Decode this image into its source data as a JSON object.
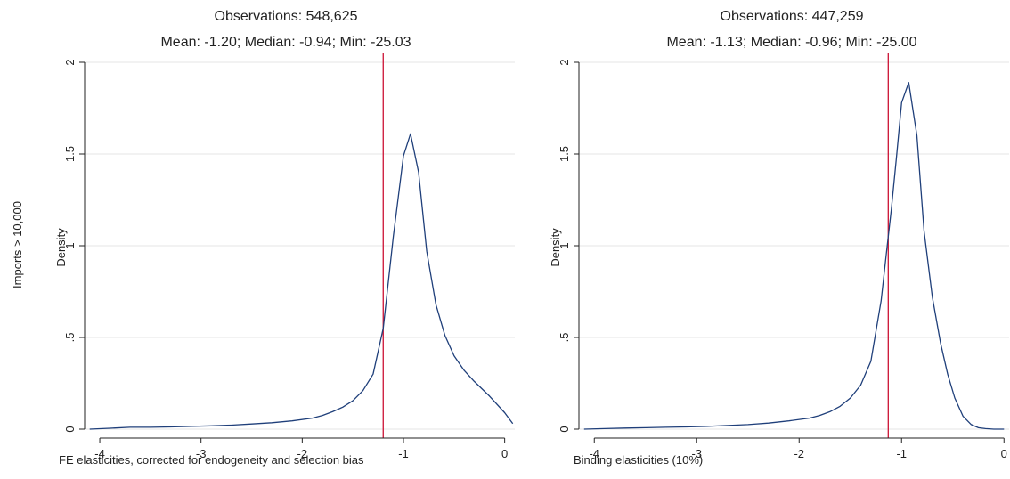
{
  "figure": {
    "row_label": "Imports > 10,000"
  },
  "panels": [
    {
      "title_line1": "Observations: 548,625",
      "title_line2": "Mean: -1.20; Median: -0.94; Min: -25.03",
      "xlabel": "FE elasticities, corrected for endogeneity and selection bias",
      "ylabel": "Density"
    },
    {
      "title_line1": "Observations: 447,259",
      "title_line2": "Mean: -1.13; Median: -0.96; Min: -25.00",
      "xlabel": "Binding elasticities (10%)",
      "ylabel": "Density"
    }
  ],
  "chart_data": [
    {
      "type": "line",
      "title": "Observations: 548,625 / Mean: -1.20; Median: -0.94; Min: -25.03",
      "xlabel": "FE elasticities, corrected for endogeneity and selection bias",
      "ylabel": "Density",
      "xlim": [
        -4.15,
        0.1
      ],
      "ylim": [
        0,
        2
      ],
      "x_ticks": [
        -4,
        -3,
        -2,
        -1,
        0
      ],
      "x_tick_labels": [
        "-4",
        "-3",
        "-2",
        "-1",
        "0"
      ],
      "y_ticks": [
        0,
        0.5,
        1,
        1.5,
        2
      ],
      "y_tick_labels": [
        "0",
        ".5",
        "1",
        "1.5",
        "2"
      ],
      "grid": true,
      "line_color": "#1f3f7a",
      "reference_line_color": "#cc1133",
      "reference_line_x": -1.2,
      "series": [
        {
          "x": [
            -4.1,
            -3.9,
            -3.7,
            -3.5,
            -3.3,
            -3.1,
            -2.9,
            -2.7,
            -2.5,
            -2.3,
            -2.1,
            -1.9,
            -1.8,
            -1.7,
            -1.6,
            -1.5,
            -1.4,
            -1.3,
            -1.2,
            -1.1,
            -1.0,
            -0.93,
            -0.85,
            -0.77,
            -0.68,
            -0.59,
            -0.5,
            -0.4,
            -0.3,
            -0.15,
            0.0,
            0.08
          ],
          "y": [
            0.0,
            0.005,
            0.01,
            0.01,
            0.012,
            0.015,
            0.018,
            0.022,
            0.028,
            0.035,
            0.045,
            0.06,
            0.075,
            0.095,
            0.12,
            0.155,
            0.21,
            0.3,
            0.55,
            1.05,
            1.49,
            1.61,
            1.4,
            0.97,
            0.68,
            0.51,
            0.4,
            0.32,
            0.26,
            0.18,
            0.09,
            0.03
          ]
        }
      ]
    },
    {
      "type": "line",
      "title": "Observations: 447,259 / Mean: -1.13; Median: -0.96; Min: -25.00",
      "xlabel": "Binding elasticities (10%)",
      "ylabel": "Density",
      "xlim": [
        -4.15,
        0.05
      ],
      "ylim": [
        0,
        2
      ],
      "x_ticks": [
        -4,
        -3,
        -2,
        -1,
        0
      ],
      "x_tick_labels": [
        "-4",
        "-3",
        "-2",
        "-1",
        "0"
      ],
      "y_ticks": [
        0,
        0.5,
        1,
        1.5,
        2
      ],
      "y_tick_labels": [
        "0",
        ".5",
        "1",
        "1.5",
        "2"
      ],
      "grid": true,
      "line_color": "#1f3f7a",
      "reference_line_color": "#cc1133",
      "reference_line_x": -1.13,
      "series": [
        {
          "x": [
            -4.1,
            -3.9,
            -3.7,
            -3.5,
            -3.3,
            -3.1,
            -2.9,
            -2.7,
            -2.5,
            -2.3,
            -2.1,
            -1.9,
            -1.8,
            -1.7,
            -1.6,
            -1.5,
            -1.4,
            -1.3,
            -1.2,
            -1.15,
            -1.1,
            -1.05,
            -1.0,
            -0.93,
            -0.85,
            -0.78,
            -0.7,
            -0.62,
            -0.55,
            -0.48,
            -0.4,
            -0.32,
            -0.25,
            -0.18,
            -0.1,
            0.0
          ],
          "y": [
            0.0,
            0.003,
            0.006,
            0.008,
            0.01,
            0.012,
            0.015,
            0.02,
            0.025,
            0.033,
            0.045,
            0.06,
            0.075,
            0.095,
            0.125,
            0.17,
            0.24,
            0.37,
            0.7,
            0.95,
            1.2,
            1.48,
            1.78,
            1.89,
            1.6,
            1.08,
            0.72,
            0.47,
            0.3,
            0.17,
            0.07,
            0.025,
            0.008,
            0.003,
            0.0,
            0.0
          ]
        }
      ]
    }
  ]
}
